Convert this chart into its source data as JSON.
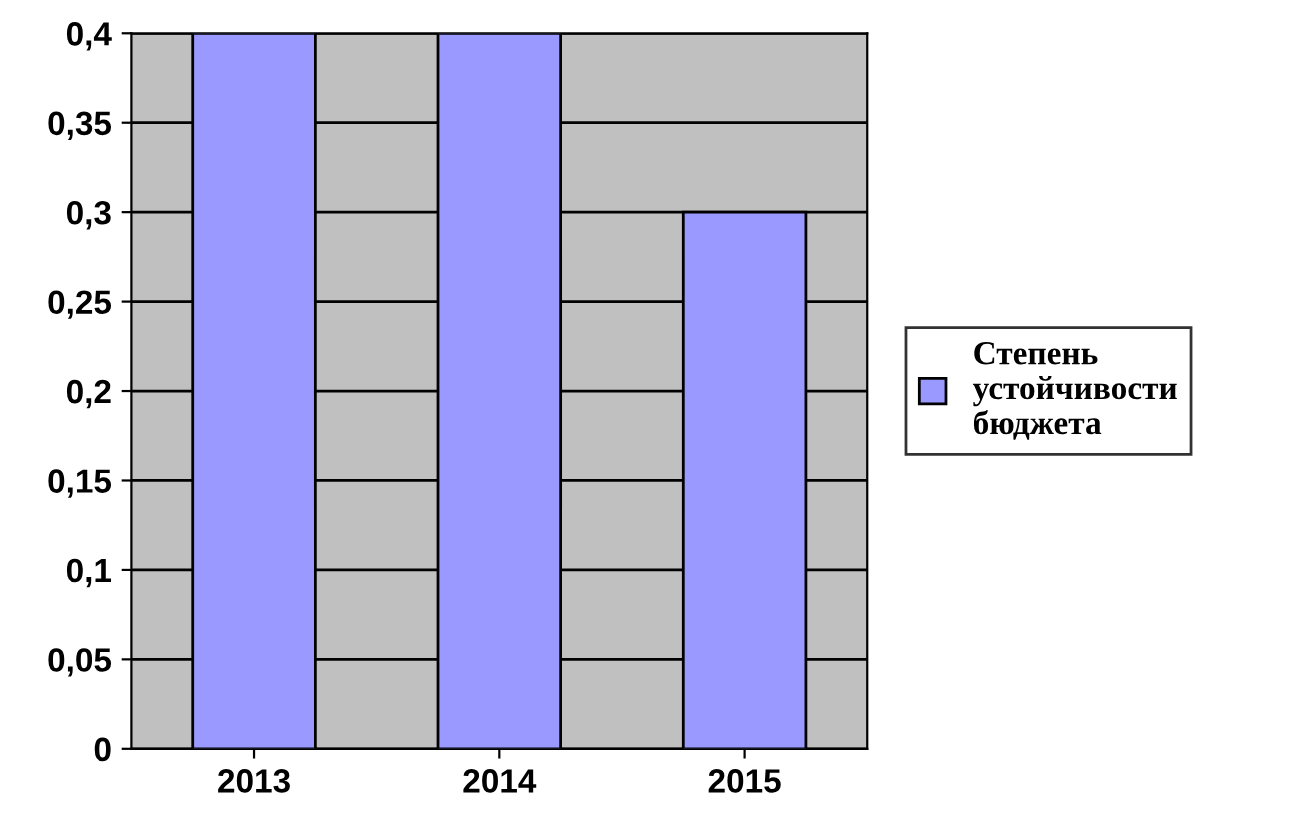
{
  "chart_data": {
    "type": "bar",
    "categories": [
      "2013",
      "2014",
      "2015"
    ],
    "series": [
      {
        "name": "Степень\nустойчивости\nбюджета",
        "color": "#9999ff",
        "values": [
          0.4,
          0.4,
          0.3
        ]
      }
    ],
    "ylim": [
      0,
      0.4
    ],
    "yticks": [
      0,
      {
        "value": 0.05,
        "label": "0,05"
      },
      {
        "value": 0.1,
        "label": "0,1"
      },
      {
        "value": 0.15,
        "label": "0,15"
      },
      {
        "value": 0.2,
        "label": "0,2"
      },
      {
        "value": 0.25,
        "label": "0,25"
      },
      {
        "value": 0.3,
        "label": "0,3"
      },
      {
        "value": 0.35,
        "label": "0,35"
      },
      {
        "value": 0.4,
        "label": "0,4"
      }
    ],
    "grid": "y",
    "legend": "right"
  }
}
